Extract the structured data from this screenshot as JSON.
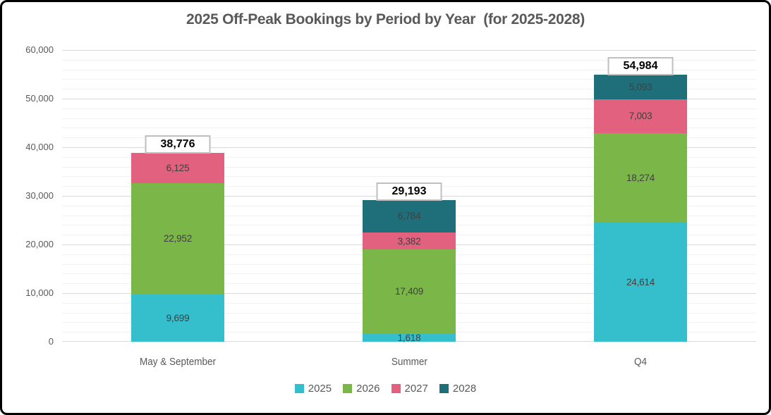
{
  "chart_data": {
    "type": "bar",
    "stacked": true,
    "title": "2025 Off-Peak Bookings by Period by Year  (for 2025-2028)",
    "categories": [
      "May & September",
      "Summer",
      "Q4"
    ],
    "series": [
      {
        "name": "2025",
        "color": "#35BFCD",
        "values": [
          9699,
          1618,
          24614
        ],
        "labels": [
          "9,699",
          "1,618",
          "24,614"
        ]
      },
      {
        "name": "2026",
        "color": "#7AB648",
        "values": [
          22952,
          17409,
          18274
        ],
        "labels": [
          "22,952",
          "17,409",
          "18,274"
        ]
      },
      {
        "name": "2027",
        "color": "#E2617F",
        "values": [
          6125,
          3382,
          7003
        ],
        "labels": [
          "6,125",
          "3,382",
          "7,003"
        ]
      },
      {
        "name": "2028",
        "color": "#1F6F7B",
        "values": [
          0,
          6784,
          5093
        ],
        "labels": [
          "",
          "6,784",
          "5,093"
        ]
      }
    ],
    "totals": [
      38776,
      29193,
      54984
    ],
    "total_labels": [
      "38,776",
      "29,193",
      "54,984"
    ],
    "xlabel": "",
    "ylabel": "",
    "ylim": [
      0,
      60000
    ],
    "y_major_step": 10000,
    "y_minor_step": 2000,
    "y_tick_labels": [
      "0",
      "10,000",
      "20,000",
      "30,000",
      "40,000",
      "50,000",
      "60,000"
    ],
    "grid": "on",
    "legend": {
      "position": "bottom",
      "entries": [
        "2025",
        "2026",
        "2027",
        "2028"
      ]
    }
  }
}
